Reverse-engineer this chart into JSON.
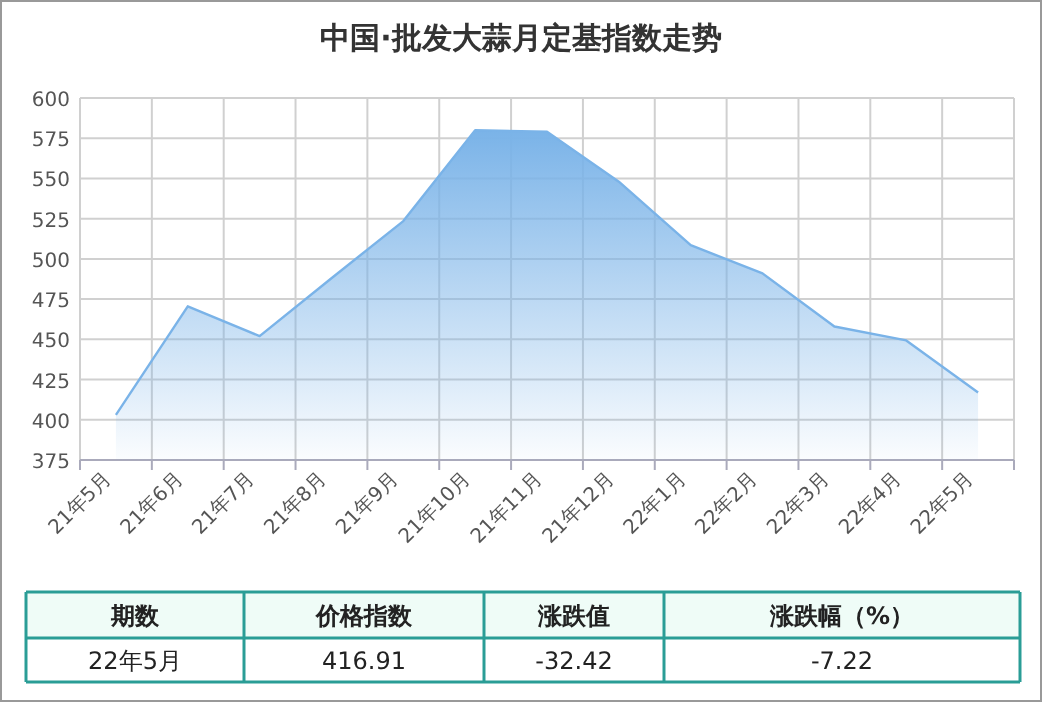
{
  "chart_data": {
    "type": "area",
    "title": "中国·批发大蒜月定基指数走势",
    "categories": [
      "21年5月",
      "21年6月",
      "21年7月",
      "21年8月",
      "21年9月",
      "21年10月",
      "21年11月",
      "21年12月",
      "22年1月",
      "22年2月",
      "22年3月",
      "22年4月",
      "22年5月"
    ],
    "values": [
      403,
      470.5,
      452,
      488,
      523.5,
      580,
      579,
      548,
      508.5,
      491,
      458,
      449.33,
      416.91
    ],
    "color": "#7ab3e8",
    "ylim": [
      375,
      600
    ],
    "yticks": [
      375,
      400,
      425,
      450,
      475,
      500,
      525,
      550,
      575,
      600
    ],
    "grid": true,
    "annotations": [
      "期数",
      "价格指数",
      "涨跌值",
      "涨跌幅（%）",
      "22年5月",
      "416.91",
      "-32.42",
      "-7.22"
    ]
  }
}
